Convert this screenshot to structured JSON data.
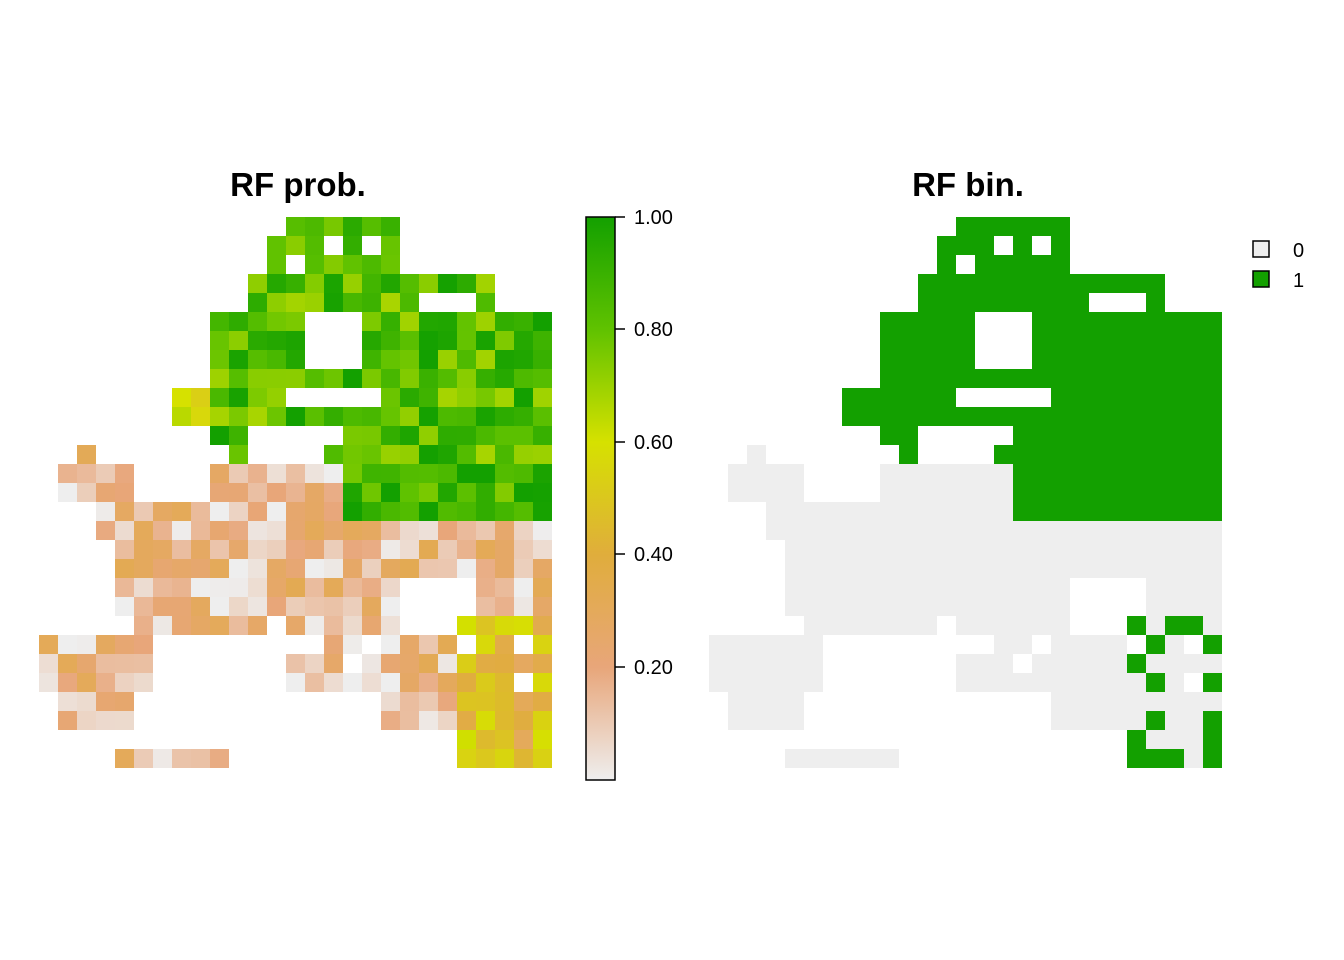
{
  "panels": {
    "left_title": "RF prob.",
    "right_title": "RF bin."
  },
  "colorbar": {
    "ticks": [
      "1.00",
      "0.80",
      "0.60",
      "0.40",
      "0.20"
    ],
    "range": [
      0,
      1
    ],
    "colors": [
      "#eeeeee",
      "#e8a67a",
      "#e0ad3c",
      "#d6e100",
      "#60c200",
      "#13a000"
    ]
  },
  "legend": {
    "items": [
      {
        "label": "0",
        "color": "#eeeeee"
      },
      {
        "label": "1",
        "color": "#13a000"
      }
    ]
  },
  "chart_data": {
    "type": "heatmap",
    "description_free": true,
    "grid_cols": 27,
    "grid_rows": 29
  }
}
